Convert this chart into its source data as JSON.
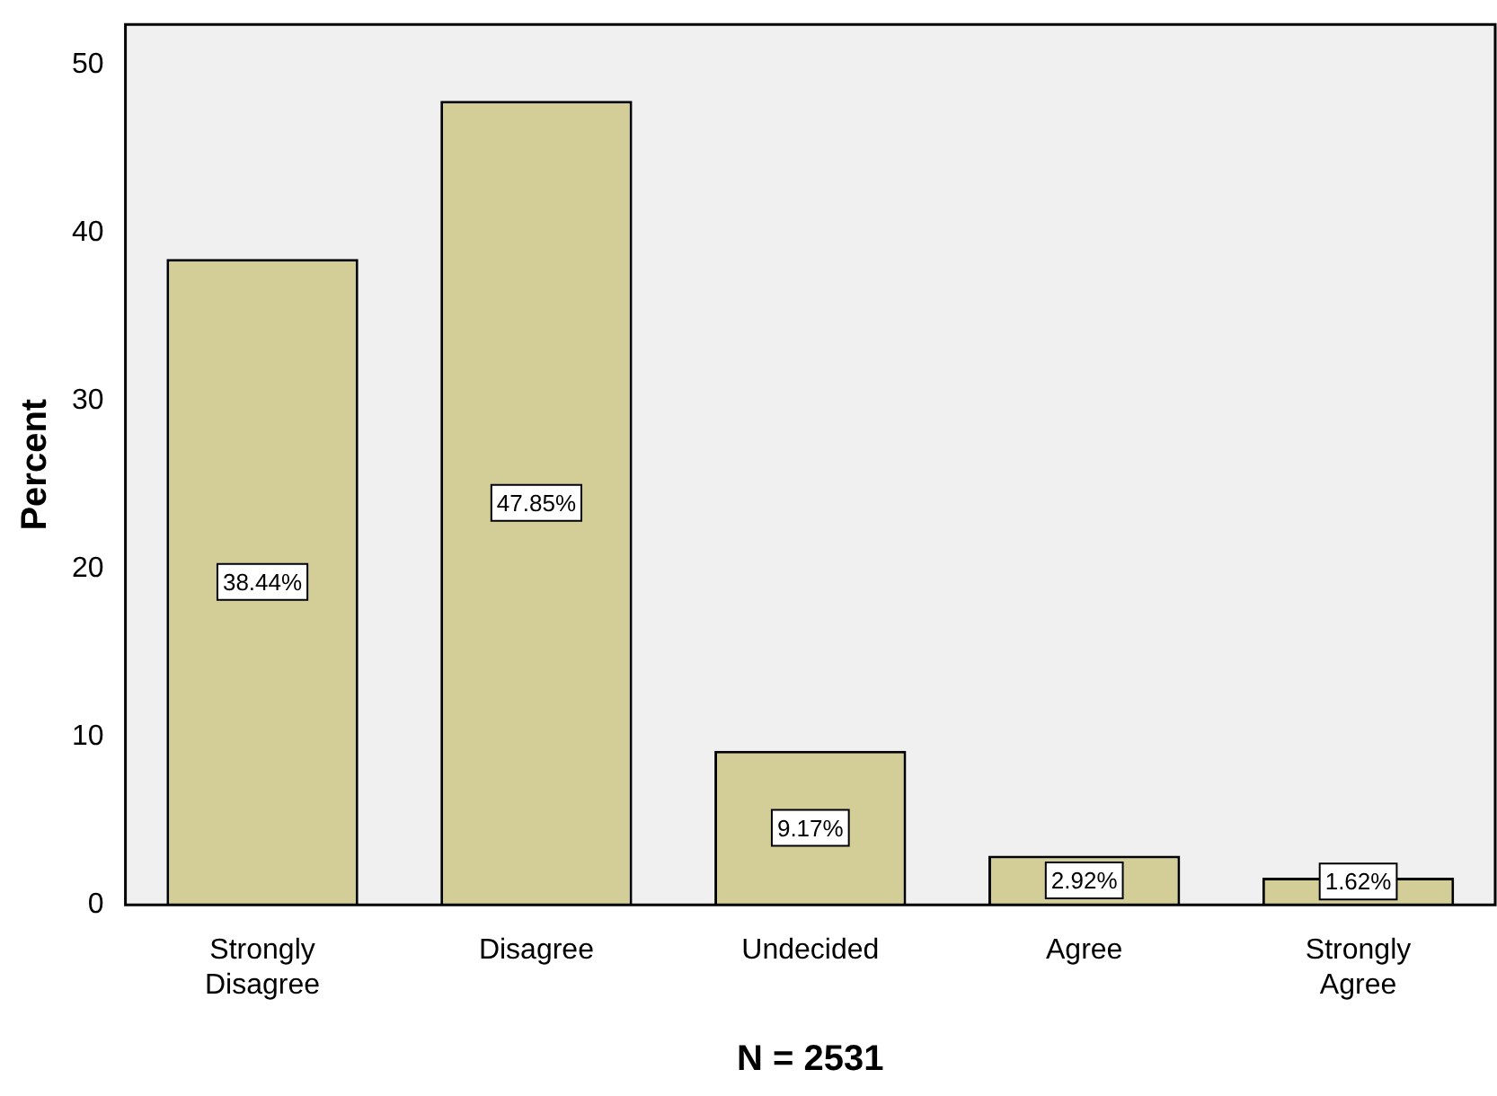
{
  "chart_data": {
    "type": "bar",
    "categories": [
      "Strongly\nDisagree",
      "Disagree",
      "Undecided",
      "Agree",
      "Strongly\nAgree"
    ],
    "values": [
      38.44,
      47.85,
      9.17,
      2.92,
      1.62
    ],
    "value_labels": [
      "38.44%",
      "47.85%",
      "9.17%",
      "2.92%",
      "1.62%"
    ],
    "color": "#d3ce97",
    "xlabel": "N = 2531",
    "ylabel": "Percent",
    "ylim": [
      0,
      52.4
    ],
    "yticks": [
      0,
      10,
      20,
      30,
      40,
      50
    ],
    "grid": false,
    "legend": false
  }
}
